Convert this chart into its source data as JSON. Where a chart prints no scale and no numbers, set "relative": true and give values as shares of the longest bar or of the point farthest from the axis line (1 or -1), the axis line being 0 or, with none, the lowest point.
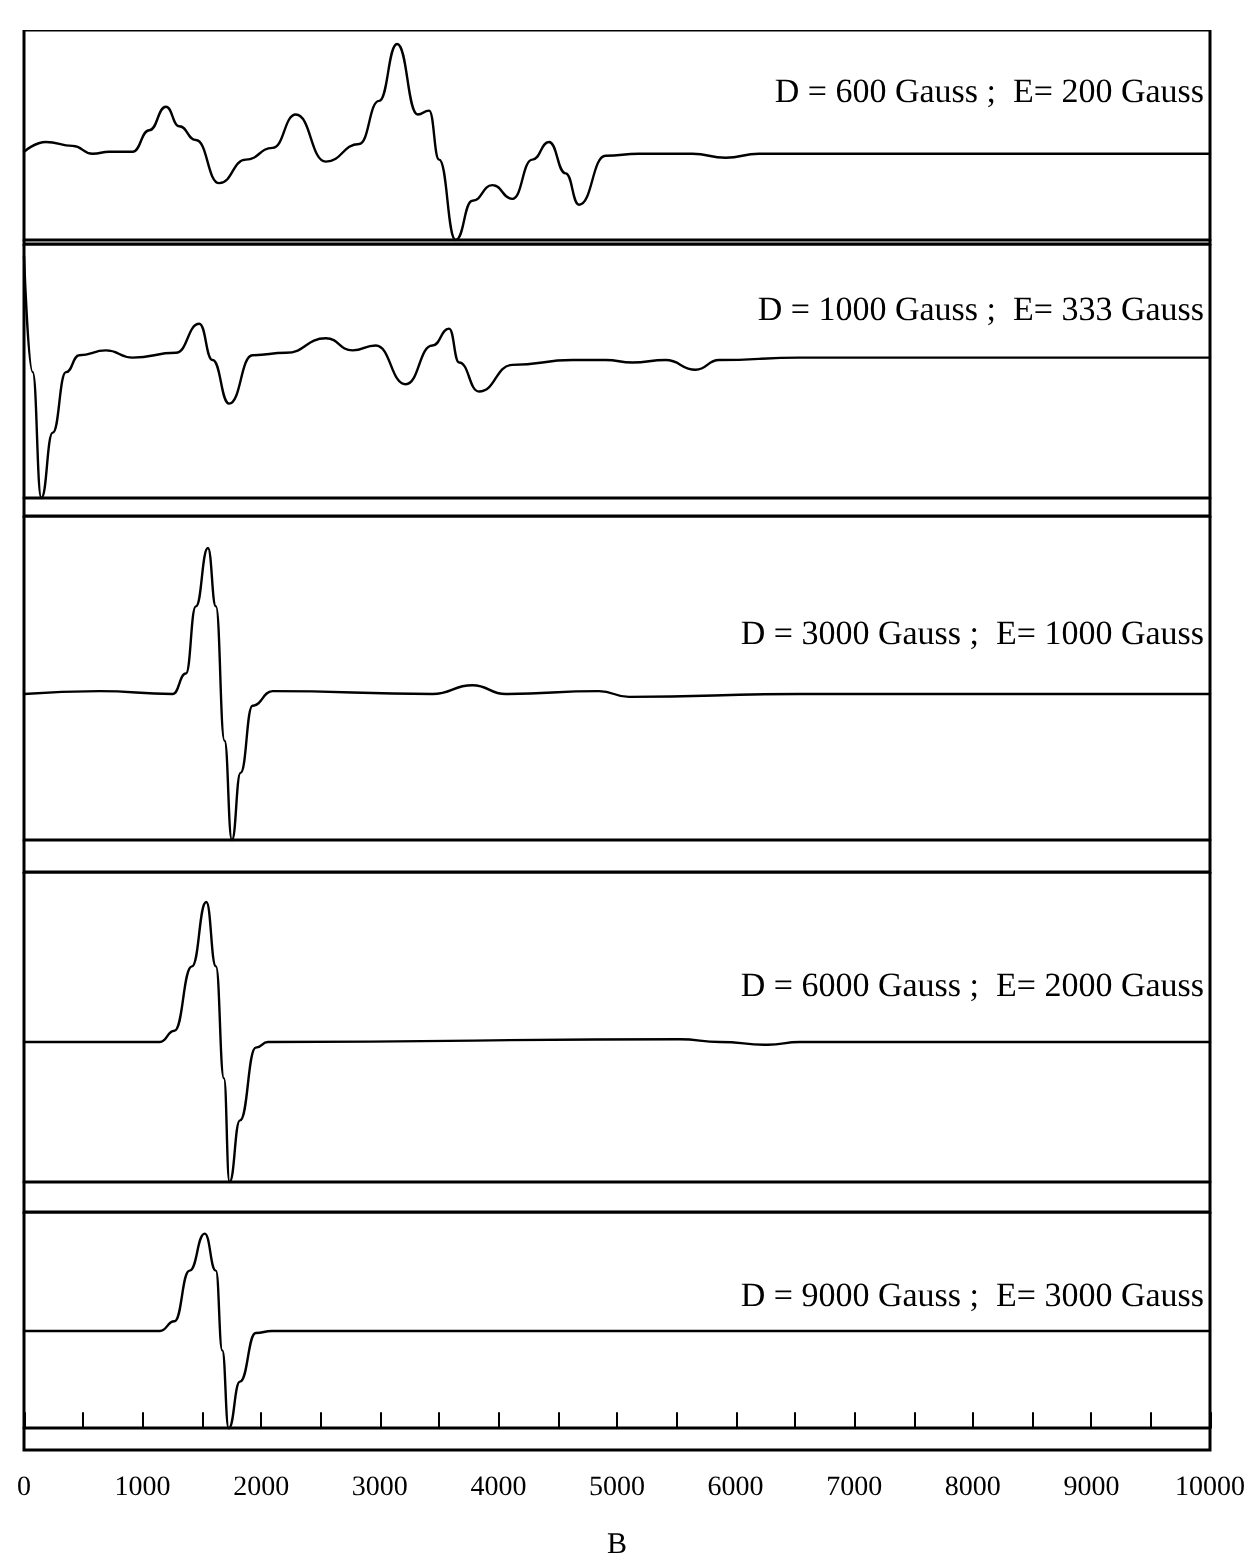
{
  "chart_data": [
    {
      "type": "line",
      "relative": true,
      "xlim": [
        0,
        10000
      ],
      "tick_labels": false,
      "annotations": [
        "D = 600 Gauss ;  E= 200 Gauss"
      ],
      "x": [
        0,
        185,
        410,
        579,
        719,
        916,
        1056,
        1197,
        1309,
        1449,
        1646,
        1871,
        2096,
        2292,
        2545,
        2826,
        2994,
        3146,
        3320,
        3416,
        3500,
        3640,
        3781,
        3949,
        4118,
        4287,
        4427,
        4567,
        4680,
        4904,
        5185,
        5635,
        5916,
        6197,
        8000,
        10000
      ],
      "series": [
        {
          "color": "#000000",
          "values": [
            0.45,
            0.5,
            0.48,
            0.44,
            0.45,
            0.45,
            0.56,
            0.68,
            0.58,
            0.51,
            0.29,
            0.41,
            0.47,
            0.64,
            0.4,
            0.49,
            0.71,
            1,
            0.64,
            0.66,
            0.41,
            0,
            0.2,
            0.28,
            0.21,
            0.41,
            0.5,
            0.34,
            0.18,
            0.43,
            0.44,
            0.44,
            0.42,
            0.44,
            0.44,
            0.44
          ]
        }
      ]
    },
    {
      "type": "line",
      "relative": true,
      "xlim": [
        0,
        10000
      ],
      "tick_labels": false,
      "annotations": [
        "D = 1000 Gauss ;  E= 333 Gauss"
      ],
      "x": [
        0,
        73,
        146,
        242,
        354,
        466,
        691,
        916,
        1281,
        1478,
        1590,
        1730,
        1927,
        2208,
        2545,
        2770,
        2966,
        3219,
        3444,
        3584,
        3669,
        3837,
        4118,
        4624,
        4904,
        5129,
        5410,
        5663,
        5860,
        6534,
        8000,
        10000
      ],
      "series": [
        {
          "color": "#000000",
          "values": [
            1,
            0.52,
            0,
            0.27,
            0.52,
            0.59,
            0.61,
            0.58,
            0.6,
            0.72,
            0.57,
            0.39,
            0.59,
            0.6,
            0.66,
            0.61,
            0.63,
            0.47,
            0.63,
            0.7,
            0.56,
            0.44,
            0.55,
            0.57,
            0.57,
            0.56,
            0.57,
            0.53,
            0.57,
            0.58,
            0.58,
            0.58
          ]
        }
      ]
    },
    {
      "type": "line",
      "relative": true,
      "xlim": [
        0,
        10000
      ],
      "tick_labels": false,
      "annotations": [
        "D = 3000 Gauss ;  E= 1000 Gauss"
      ],
      "x": [
        0,
        635,
        1253,
        1365,
        1449,
        1551,
        1618,
        1691,
        1753,
        1826,
        1927,
        2096,
        3444,
        3781,
        4062,
        4848,
        5101,
        6534,
        8000,
        10000
      ],
      "series": [
        {
          "color": "#000000",
          "values": [
            0.5,
            0.51,
            0.5,
            0.57,
            0.8,
            1,
            0.8,
            0.34,
            0,
            0.23,
            0.46,
            0.51,
            0.5,
            0.53,
            0.5,
            0.51,
            0.49,
            0.5,
            0.5,
            0.5
          ]
        }
      ]
    },
    {
      "type": "line",
      "relative": true,
      "xlim": [
        0,
        10000
      ],
      "tick_labels": false,
      "annotations": [
        "D = 6000 Gauss ;  E= 2000 Gauss"
      ],
      "x": [
        0,
        1146,
        1268,
        1416,
        1537,
        1618,
        1686,
        1733,
        1821,
        1955,
        2057,
        5529,
        5866,
        6271,
        6541,
        10000
      ],
      "series": [
        {
          "color": "#000000",
          "values": [
            0.5,
            0.5,
            0.54,
            0.77,
            1,
            0.77,
            0.37,
            0,
            0.22,
            0.48,
            0.5,
            0.51,
            0.5,
            0.49,
            0.5,
            0.5
          ]
        }
      ]
    },
    {
      "type": "line",
      "relative": true,
      "xlim": [
        0,
        10000
      ],
      "tick_labels": "x",
      "xlabel": "B",
      "annotations": [
        "D = 9000 Gauss ;  E= 3000 Gauss"
      ],
      "xticks": [
        0,
        {
          "value": 500,
          "label": null
        },
        1000,
        {
          "value": 1500,
          "label": null
        },
        2000,
        {
          "value": 2500,
          "label": null
        },
        3000,
        {
          "value": 3500,
          "label": null
        },
        4000,
        {
          "value": 4500,
          "label": null
        },
        5000,
        {
          "value": 5500,
          "label": null
        },
        6000,
        {
          "value": 6500,
          "label": null
        },
        7000,
        {
          "value": 7500,
          "label": null
        },
        8000,
        {
          "value": 8500,
          "label": null
        },
        9000,
        {
          "value": 9500,
          "label": null
        },
        10000
      ],
      "x": [
        0,
        1146,
        1268,
        1396,
        1524,
        1618,
        1672,
        1726,
        1821,
        1955,
        2090,
        10000
      ],
      "series": [
        {
          "color": "#000000",
          "values": [
            0.5,
            0.5,
            0.55,
            0.81,
            1,
            0.81,
            0.4,
            0,
            0.24,
            0.49,
            0.5,
            0.5
          ]
        }
      ]
    }
  ]
}
